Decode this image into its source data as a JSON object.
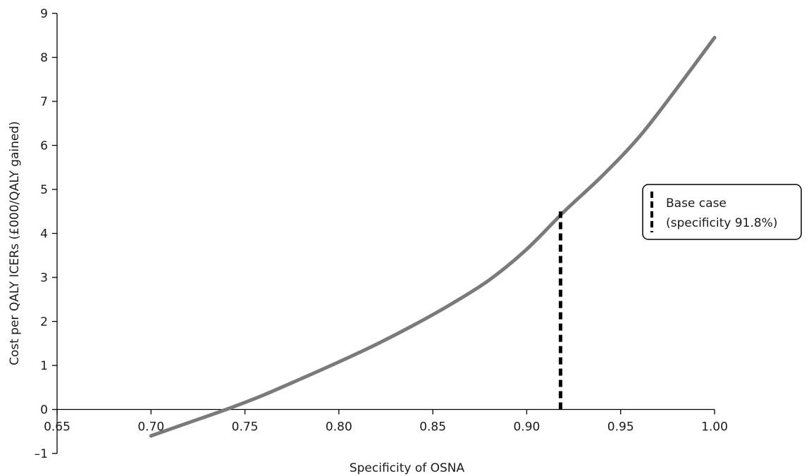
{
  "chart_data": {
    "type": "line",
    "title": "",
    "xlabel": "Specificity of OSNA",
    "ylabel": "Cost per QALY ICERs (£000/QALY gained)",
    "xlim": [
      0.65,
      1.0
    ],
    "ylim": [
      -1,
      9
    ],
    "x_ticks": [
      "0.65",
      "0.70",
      "0.75",
      "0.80",
      "0.85",
      "0.90",
      "0.95",
      "1.00"
    ],
    "y_ticks": [
      "–1",
      "0",
      "1",
      "2",
      "3",
      "4",
      "5",
      "6",
      "7",
      "8",
      "9"
    ],
    "grid": false,
    "series": [
      {
        "color": "#7a7a7a",
        "x": [
          0.7,
          0.72,
          0.74,
          0.76,
          0.78,
          0.8,
          0.82,
          0.84,
          0.86,
          0.88,
          0.9,
          0.92,
          0.94,
          0.96,
          0.98,
          1.0
        ],
        "y": [
          -0.6,
          -0.3,
          0.0,
          0.33,
          0.7,
          1.08,
          1.48,
          1.92,
          2.4,
          2.94,
          3.64,
          4.5,
          5.3,
          6.2,
          7.3,
          8.45
        ]
      }
    ],
    "reference_line": {
      "x": 0.918,
      "y0": 0,
      "y1": 4.5,
      "style": "dashed",
      "color": "#000000"
    },
    "legend": {
      "position": "right",
      "line1": "Base case",
      "line2": "(specificity 91.8%)"
    }
  }
}
